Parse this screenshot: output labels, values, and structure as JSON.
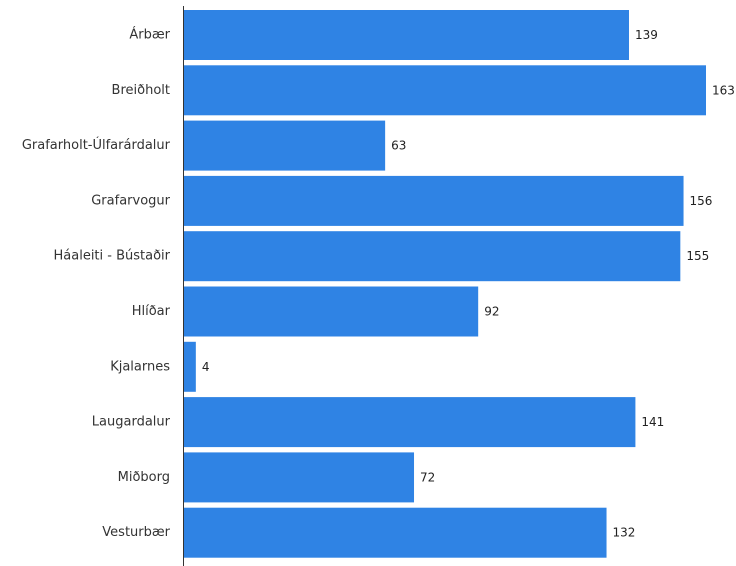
{
  "chart_data": {
    "type": "bar",
    "orientation": "horizontal",
    "categories": [
      "Árbær",
      "Breiðholt",
      "Grafarholt-Úlfarárdalur",
      "Grafarvogur",
      "Háaleiti - Bústaðir",
      "Hlíðar",
      "Kjalarnes",
      "Laugardalur",
      "Miðborg",
      "Vesturbær"
    ],
    "values": [
      139,
      163,
      63,
      156,
      155,
      92,
      4,
      141,
      72,
      132
    ],
    "value_labels": [
      "139",
      "163",
      "63",
      "156",
      "155",
      "92",
      "4",
      "141",
      "72",
      "132"
    ],
    "title": "",
    "xlabel": "",
    "ylabel": "",
    "xlim": [
      0,
      163
    ],
    "grid": false,
    "legend": "none",
    "bar_color": "#2f83e4"
  }
}
